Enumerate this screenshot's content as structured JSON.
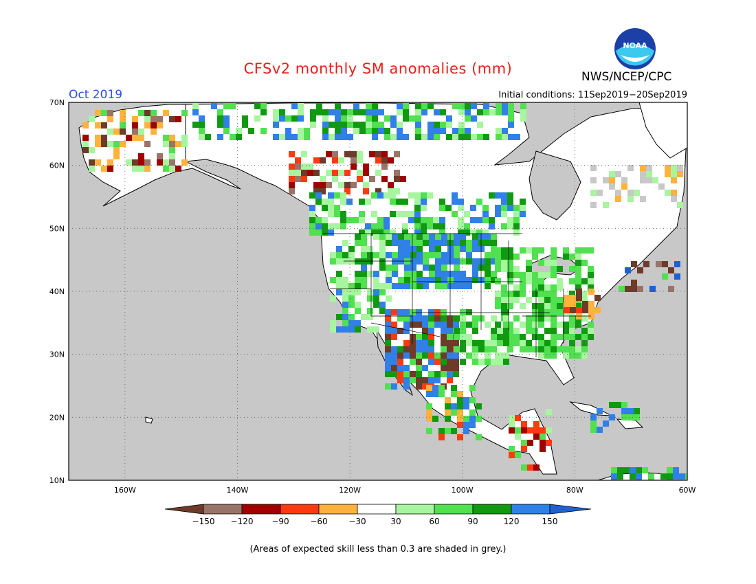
{
  "header": {
    "title": "CFSv2 monthly SM anomalies (mm)",
    "period": "Oct 2019",
    "initial_conditions": "Initial conditions: 11Sep2019−20Sep2019",
    "agency": "NWS/NCEP/CPC",
    "logo_text": "NOAA",
    "logo_icon": "noaa-logo-icon"
  },
  "map": {
    "projection": "lat-lon",
    "lon_range": [
      -170,
      -60
    ],
    "lat_range": [
      10,
      70
    ],
    "lat_ticks": [
      "70N",
      "60N",
      "50N",
      "40N",
      "30N",
      "20N",
      "10N"
    ],
    "lon_ticks": [
      "160W",
      "140W",
      "120W",
      "100W",
      "80W",
      "60W"
    ],
    "gridlines": "dotted",
    "colors": {
      "low_skill_grey": "#c8c8c8",
      "ocean": "#c8c8c8",
      "land_neutral": "#ffffff"
    }
  },
  "legend": {
    "labels": [
      "−150",
      "−120",
      "−90",
      "−60",
      "−30",
      "30",
      "60",
      "90",
      "120",
      "150"
    ],
    "colors": [
      "#6e3a2a",
      "#9a7468",
      "#a00000",
      "#ff3a10",
      "#ffb33c",
      "#ffffff",
      "#a8f5a0",
      "#50e050",
      "#119a11",
      "#3080e8",
      "#2060d0"
    ]
  },
  "footnote": "(Areas of expected skill less than 0.3 are shaded in grey.)"
}
